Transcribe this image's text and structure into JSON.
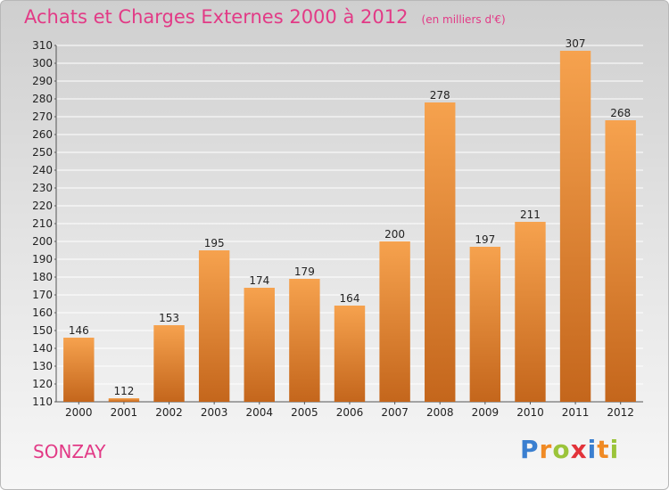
{
  "title": "Achats et Charges Externes 2000 à 2012",
  "unit": "(en milliers d'€)",
  "commune": "SONZAY",
  "logo": "Proxiti",
  "colors": {
    "title": "#e23a86",
    "bar_light": "#f6a24e",
    "bar_dark": "#c4661c",
    "grid": "#ffffff"
  },
  "chart_data": {
    "type": "bar",
    "title": "Achats et Charges Externes 2000 à 2012",
    "subtitle": "(en milliers d'€)",
    "categories": [
      "2000",
      "2001",
      "2002",
      "2003",
      "2004",
      "2005",
      "2006",
      "2007",
      "2008",
      "2009",
      "2010",
      "2011",
      "2012"
    ],
    "values": [
      146,
      112,
      153,
      195,
      174,
      179,
      164,
      200,
      278,
      197,
      211,
      307,
      268
    ],
    "ylim": [
      110,
      310
    ],
    "ytick_step": 10,
    "grid": true,
    "data_labels": true
  }
}
